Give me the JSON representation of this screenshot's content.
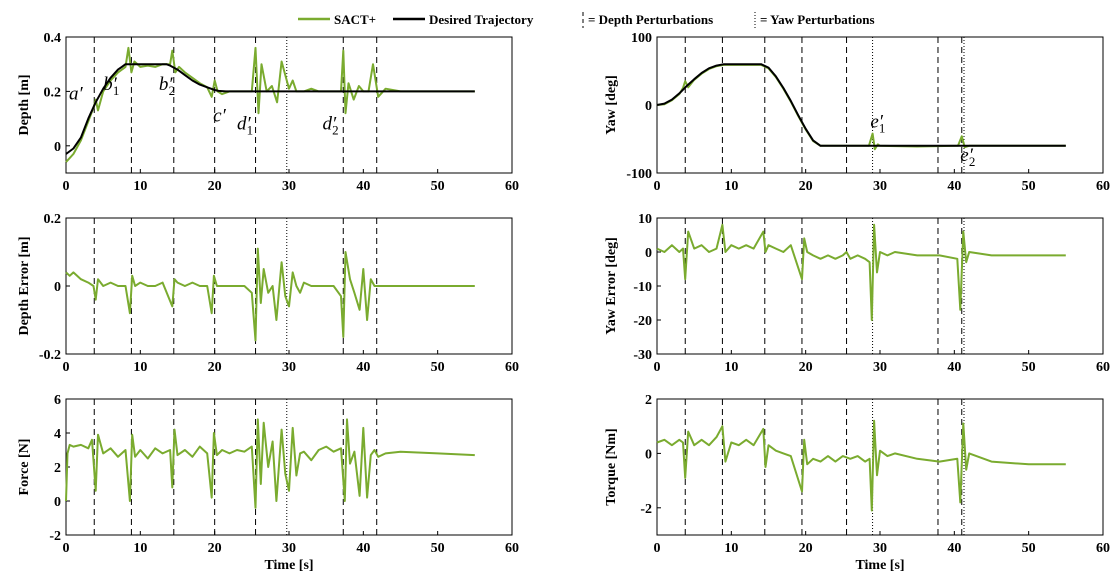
{
  "legend": {
    "items": [
      {
        "label": "SACT+",
        "color": "#7aab2f",
        "style": "solid-green"
      },
      {
        "label": "Desired Trajectory",
        "color": "#000000",
        "style": "solid-black"
      },
      {
        "label": "= Depth Perturbations",
        "style": "dashed"
      },
      {
        "label": "= Yaw Perturbations",
        "style": "dotted"
      }
    ]
  },
  "colors": {
    "actual": "#7aab2f",
    "desired": "#000000"
  },
  "chart_data": [
    {
      "type": "line",
      "id": "depth",
      "ylabel": "Depth [m]",
      "xlabel": "",
      "xlim": [
        0,
        60
      ],
      "ylim": [
        -0.1,
        0.4
      ],
      "xticks": [
        0,
        10,
        20,
        30,
        40,
        50,
        60
      ],
      "yticks": [
        0,
        0.2,
        0.4
      ],
      "ytick_labels": [
        "0",
        "0.2",
        "0.4"
      ],
      "desired": {
        "x": [
          0,
          1,
          2,
          3,
          4,
          5,
          6,
          7,
          7.5,
          8,
          13.5,
          14,
          15,
          16,
          17,
          18,
          19,
          19.5,
          20,
          20.5,
          21.5,
          22.5,
          55
        ],
        "y": [
          -0.03,
          -0.01,
          0.03,
          0.1,
          0.16,
          0.21,
          0.25,
          0.28,
          0.29,
          0.3,
          0.3,
          0.295,
          0.28,
          0.26,
          0.24,
          0.225,
          0.215,
          0.21,
          0.205,
          0.202,
          0.2,
          0.2,
          0.2
        ]
      },
      "actual": {
        "x": [
          0,
          1,
          2,
          3,
          3.7,
          4,
          4.3,
          5,
          6,
          7,
          8,
          8.4,
          8.8,
          9.2,
          10,
          11,
          12,
          13,
          14,
          14.3,
          14.7,
          15.2,
          16,
          17,
          18,
          19,
          19.6,
          20,
          20.4,
          21,
          22,
          23,
          24,
          25,
          25.5,
          25.9,
          26.3,
          27,
          27.7,
          28.4,
          29,
          29.5,
          30,
          30.5,
          31,
          32,
          33,
          34,
          35,
          36,
          37,
          37.3,
          37.6,
          38,
          38.7,
          39.4,
          40,
          40.7,
          41.3,
          42,
          43,
          45,
          48,
          55
        ],
        "y": [
          -0.06,
          -0.03,
          0.02,
          0.09,
          0.14,
          0.17,
          0.13,
          0.2,
          0.24,
          0.27,
          0.29,
          0.36,
          0.27,
          0.31,
          0.29,
          0.295,
          0.29,
          0.3,
          0.3,
          0.35,
          0.27,
          0.29,
          0.27,
          0.25,
          0.23,
          0.215,
          0.18,
          0.24,
          0.2,
          0.19,
          0.2,
          0.2,
          0.2,
          0.2,
          0.36,
          0.12,
          0.3,
          0.2,
          0.22,
          0.16,
          0.31,
          0.26,
          0.21,
          0.24,
          0.2,
          0.2,
          0.21,
          0.2,
          0.2,
          0.2,
          0.2,
          0.35,
          0.12,
          0.23,
          0.17,
          0.22,
          0.2,
          0.2,
          0.3,
          0.18,
          0.21,
          0.2,
          0.2,
          0.2
        ]
      },
      "annotations": [
        {
          "text": "a",
          "sub": "",
          "x": 0.4,
          "y": 0.17
        },
        {
          "text": "b",
          "sub": "1",
          "x": 5.0,
          "y": 0.205
        },
        {
          "text": "b",
          "sub": "2",
          "x": 12.5,
          "y": 0.205
        },
        {
          "text": "c",
          "sub": "",
          "x": 19.8,
          "y": 0.09
        },
        {
          "text": "d",
          "sub": "1",
          "x": 23.0,
          "y": 0.06
        },
        {
          "text": "d",
          "sub": "2",
          "x": 34.5,
          "y": 0.06
        }
      ]
    },
    {
      "type": "line",
      "id": "yaw",
      "ylabel": "Yaw [deg]",
      "xlabel": "",
      "xlim": [
        0,
        60
      ],
      "ylim": [
        -100,
        100
      ],
      "xticks": [
        0,
        10,
        20,
        30,
        40,
        50,
        60
      ],
      "yticks": [
        -100,
        0,
        100
      ],
      "ytick_labels": [
        "-100",
        "0",
        "100"
      ],
      "desired": {
        "x": [
          0,
          1,
          2,
          3,
          4,
          5,
          6,
          7,
          8,
          9,
          14,
          15,
          16,
          17,
          18,
          19,
          20,
          21,
          22,
          55
        ],
        "y": [
          0,
          2,
          8,
          17,
          28,
          38,
          47,
          54,
          58,
          60,
          60,
          55,
          42,
          25,
          6,
          -15,
          -35,
          -52,
          -60,
          -60
        ]
      },
      "actual": {
        "x": [
          0,
          1,
          2,
          3,
          3.5,
          3.8,
          4.2,
          5,
          6,
          7,
          8,
          9,
          14,
          15,
          16,
          17,
          18,
          19,
          20,
          21,
          22,
          25,
          28.5,
          29,
          29.3,
          29.7,
          30,
          35,
          40.5,
          41,
          41.4,
          42,
          55
        ],
        "y": [
          0,
          1,
          7,
          16,
          25,
          35,
          26,
          37,
          46,
          53,
          57,
          59,
          59,
          54,
          41,
          24,
          5,
          -16,
          -36,
          -53,
          -60,
          -60,
          -60,
          -42,
          -65,
          -58,
          -60,
          -61,
          -60,
          -46,
          -62,
          -60,
          -60
        ]
      },
      "annotations": [
        {
          "text": "e",
          "sub": "1",
          "x": 28.7,
          "y": -33
        },
        {
          "text": "e",
          "sub": "2",
          "x": 40.8,
          "y": -82
        }
      ]
    },
    {
      "type": "line",
      "id": "depth-error",
      "ylabel": "Depth Error [m]",
      "xlabel": "",
      "xlim": [
        0,
        60
      ],
      "ylim": [
        -0.2,
        0.2
      ],
      "xticks": [
        0,
        10,
        20,
        30,
        40,
        50,
        60
      ],
      "yticks": [
        -0.2,
        0,
        0.2
      ],
      "ytick_labels": [
        "-0.2",
        "0",
        "0.2"
      ],
      "actual": {
        "x": [
          0,
          0.5,
          1,
          2,
          3,
          3.7,
          4,
          4.3,
          5,
          6,
          7,
          8,
          8.6,
          8.9,
          9.3,
          10,
          11,
          12,
          13,
          14.3,
          14.6,
          15,
          16,
          17,
          18,
          19,
          19.6,
          19.9,
          20.3,
          21,
          22,
          23,
          24,
          25,
          25.5,
          25.8,
          26.2,
          26.6,
          27.2,
          27.8,
          28.3,
          29,
          29.5,
          30,
          30.5,
          31,
          31.5,
          32,
          33,
          34,
          35,
          36,
          37,
          37.3,
          37.6,
          38.2,
          38.8,
          39.5,
          40,
          40.5,
          41,
          41.5,
          42,
          43,
          44,
          46,
          50,
          55
        ],
        "y": [
          0.04,
          0.03,
          0.04,
          0.02,
          0.01,
          0.0,
          -0.04,
          0.02,
          0.0,
          0.01,
          0.0,
          0.0,
          -0.08,
          0.03,
          0.0,
          0.01,
          0.0,
          0.0,
          0.01,
          -0.06,
          0.02,
          0.01,
          0.0,
          0.01,
          0.0,
          0.0,
          -0.08,
          0.03,
          0.0,
          0.0,
          0.0,
          0.0,
          0.0,
          -0.02,
          -0.16,
          0.11,
          -0.05,
          0.05,
          -0.02,
          0.0,
          -0.1,
          0.07,
          -0.03,
          -0.06,
          0.04,
          0.0,
          -0.02,
          0.01,
          0.0,
          0.0,
          0.0,
          0.0,
          -0.03,
          -0.15,
          0.1,
          0.02,
          -0.02,
          -0.07,
          0.05,
          -0.1,
          0.02,
          0.0,
          0.0,
          0.0,
          0.0,
          0.0,
          0.0,
          0.0
        ]
      }
    },
    {
      "type": "line",
      "id": "yaw-error",
      "ylabel": "Yaw Error [deg]",
      "xlabel": "",
      "xlim": [
        0,
        60
      ],
      "ylim": [
        -30,
        10
      ],
      "xticks": [
        0,
        10,
        20,
        30,
        40,
        50,
        60
      ],
      "yticks": [
        -30,
        -20,
        -10,
        0,
        10
      ],
      "ytick_labels": [
        "-30",
        "-20",
        "-10",
        "0",
        "10"
      ],
      "actual": {
        "x": [
          0,
          1,
          2,
          3,
          3.5,
          3.8,
          4.2,
          5,
          6,
          7,
          8,
          8.8,
          9.2,
          10,
          11,
          12,
          13,
          14.3,
          14.6,
          15,
          16,
          17,
          18,
          19.5,
          19.8,
          20.2,
          21,
          22,
          23,
          24,
          25,
          25.5,
          26,
          27,
          28,
          28.6,
          28.9,
          29.2,
          29.6,
          30,
          31,
          32,
          35,
          38,
          40.4,
          40.8,
          41.2,
          41.6,
          42,
          45,
          50,
          55
        ],
        "y": [
          1,
          0,
          2,
          0,
          1,
          -8,
          6,
          1,
          2,
          0,
          1,
          8,
          0,
          2,
          1,
          2,
          1,
          6,
          0,
          2,
          1,
          0,
          2,
          -8,
          4,
          0,
          -1,
          -2,
          -1,
          -2,
          -1,
          0,
          -2,
          -1,
          -2,
          -3,
          -20,
          8,
          -6,
          0,
          -1,
          0,
          -1,
          -1,
          -2,
          -17,
          6,
          -3,
          0,
          -1,
          -1,
          -1
        ]
      }
    },
    {
      "type": "line",
      "id": "force",
      "ylabel": "Force [N]",
      "xlabel": "Time [s]",
      "xlim": [
        0,
        60
      ],
      "ylim": [
        -2,
        6
      ],
      "xticks": [
        0,
        10,
        20,
        30,
        40,
        50,
        60
      ],
      "yticks": [
        -2,
        0,
        2,
        4,
        6
      ],
      "ytick_labels": [
        "-2",
        "0",
        "2",
        "4",
        "6"
      ],
      "actual": {
        "x": [
          0,
          0.2,
          0.5,
          1,
          2,
          3,
          3.5,
          4,
          4.3,
          5,
          6,
          7,
          8,
          8.6,
          8.9,
          9.3,
          10,
          11,
          12,
          13,
          14,
          14.3,
          14.6,
          15,
          16,
          17,
          18,
          19,
          19.6,
          19.9,
          20.3,
          21,
          22,
          23,
          24,
          25,
          25.5,
          25.8,
          26.2,
          26.6,
          27.2,
          27.8,
          28.3,
          29,
          29.5,
          30,
          30.5,
          31,
          31.5,
          32,
          33,
          34,
          35,
          36,
          37,
          37.5,
          37.8,
          38.2,
          38.8,
          39.5,
          40,
          40.5,
          41,
          41.5,
          42,
          43,
          45,
          50,
          55
        ],
        "y": [
          0,
          2.8,
          3.3,
          3.2,
          3.3,
          3.1,
          3.6,
          0.6,
          3.9,
          2.8,
          3.1,
          2.6,
          3.0,
          0.0,
          3.9,
          2.6,
          3.0,
          2.5,
          3.1,
          2.8,
          3.0,
          0.8,
          4.2,
          2.7,
          3.0,
          2.6,
          3.2,
          2.8,
          0.2,
          4.0,
          2.7,
          3.0,
          2.8,
          3.0,
          2.9,
          3.2,
          -0.4,
          4.8,
          1.0,
          4.6,
          2.0,
          3.5,
          0.0,
          4.2,
          1.6,
          0.6,
          4.3,
          1.5,
          2.8,
          2.9,
          2.4,
          3.0,
          3.2,
          2.9,
          3.1,
          0.0,
          4.8,
          2.2,
          2.9,
          0.3,
          4.3,
          0.2,
          2.7,
          3.0,
          2.6,
          2.8,
          2.9,
          2.8,
          2.7
        ]
      }
    },
    {
      "type": "line",
      "id": "torque",
      "ylabel": "Torque [Nm]",
      "xlabel": "Time [s]",
      "xlim": [
        0,
        60
      ],
      "ylim": [
        -3,
        2
      ],
      "xticks": [
        0,
        10,
        20,
        30,
        40,
        50,
        60
      ],
      "yticks": [
        -2,
        0,
        2
      ],
      "ytick_labels": [
        "-2",
        "0",
        "2"
      ],
      "actual": {
        "x": [
          0,
          1,
          2,
          3,
          3.5,
          3.8,
          4.2,
          5,
          6,
          7,
          8,
          8.8,
          9.2,
          10,
          11,
          12,
          13,
          14.3,
          14.6,
          15,
          16,
          17,
          18,
          19.5,
          19.8,
          20.2,
          21,
          22,
          23,
          24,
          25,
          26,
          27,
          28,
          28.6,
          28.9,
          29.2,
          29.6,
          30,
          31,
          32,
          35,
          38,
          40.4,
          40.8,
          41.2,
          41.6,
          42,
          45,
          50,
          55
        ],
        "y": [
          0.4,
          0.5,
          0.3,
          0.5,
          0.4,
          -0.9,
          0.8,
          0.3,
          0.5,
          0.3,
          0.6,
          1.0,
          -0.3,
          0.4,
          0.3,
          0.5,
          0.3,
          0.9,
          -0.5,
          0.3,
          0.1,
          0.0,
          -0.1,
          -1.4,
          0.5,
          -0.4,
          -0.2,
          -0.3,
          -0.1,
          -0.3,
          -0.1,
          -0.2,
          -0.1,
          -0.3,
          -0.2,
          -2.1,
          1.2,
          -0.8,
          0.1,
          -0.1,
          0.0,
          -0.2,
          -0.3,
          -0.2,
          -1.8,
          1.1,
          -0.6,
          0.0,
          -0.3,
          -0.4,
          -0.4
        ]
      }
    }
  ],
  "depth_perturbation_times": [
    3.8,
    8.8,
    14.5,
    20.0,
    25.5,
    37.3,
    41.8
  ],
  "yaw_perturbation_times": [
    29.7
  ],
  "yaw_depth_perturbation_times": [
    3.8,
    8.8,
    14.5,
    19.5,
    25.5,
    37.8,
    41.0
  ],
  "yaw_yaw_perturbation_times": [
    29.0,
    41.3
  ]
}
